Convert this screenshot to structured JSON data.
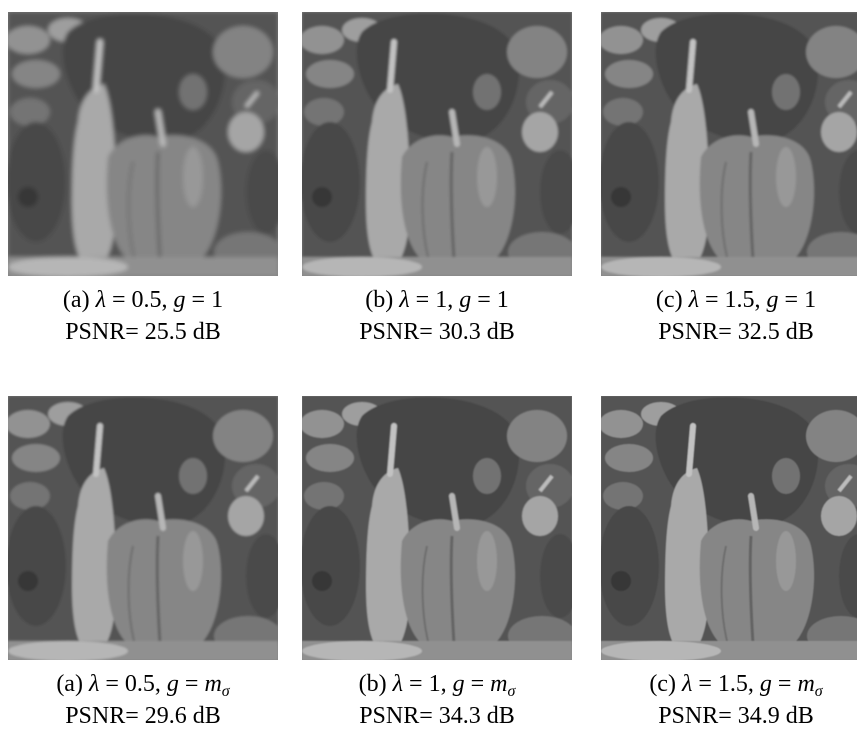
{
  "figure": {
    "panels": [
      {
        "label": "(a)",
        "lambda_value": "0.5",
        "g_value": "1",
        "psnr_label": "PSNR=",
        "psnr_value": "25.5",
        "psnr_unit": "dB"
      },
      {
        "label": "(b)",
        "lambda_value": "1",
        "g_value": "1",
        "psnr_label": "PSNR=",
        "psnr_value": "30.3",
        "psnr_unit": "dB"
      },
      {
        "label": "(c)",
        "lambda_value": "1.5",
        "g_value": "1",
        "psnr_label": "PSNR=",
        "psnr_value": "32.5",
        "psnr_unit": "dB"
      },
      {
        "label": "(a)",
        "lambda_value": "0.5",
        "g_value": "m",
        "g_sub": "σ",
        "psnr_label": "PSNR=",
        "psnr_value": "29.6",
        "psnr_unit": "dB"
      },
      {
        "label": "(b)",
        "lambda_value": "1",
        "g_value": "m",
        "g_sub": "σ",
        "psnr_label": "PSNR=",
        "psnr_value": "34.3",
        "psnr_unit": "dB"
      },
      {
        "label": "(c)",
        "lambda_value": "1.5",
        "g_value": "m",
        "g_sub": "σ",
        "psnr_label": "PSNR=",
        "psnr_value": "34.9",
        "psnr_unit": "dB"
      }
    ],
    "symbols": {
      "lambda": "λ",
      "equals": "=",
      "g": "g"
    }
  }
}
